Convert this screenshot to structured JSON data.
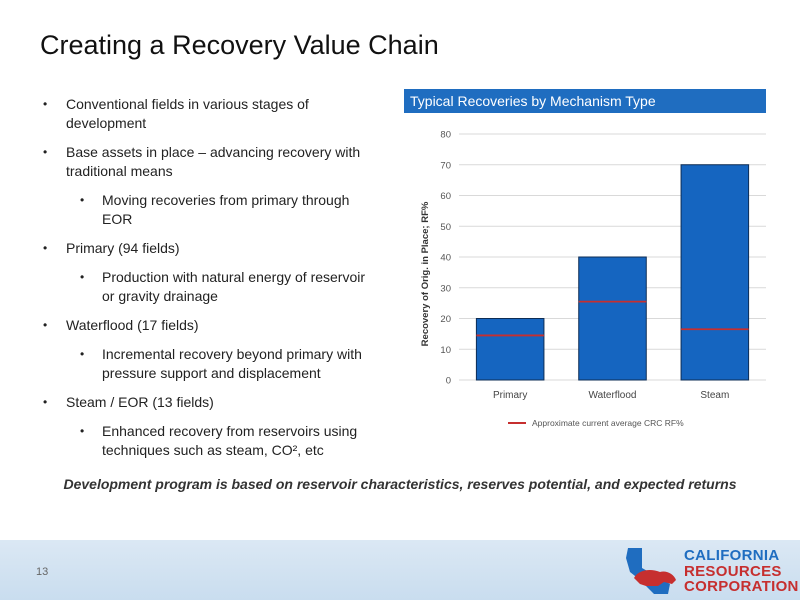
{
  "title": "Creating a Recovery Value Chain",
  "bullets": [
    {
      "level": 1,
      "text": "Conventional fields in various stages of development"
    },
    {
      "level": 1,
      "text": "Base assets in place – advancing recovery with traditional means"
    },
    {
      "level": 2,
      "text": "Moving recoveries from primary through EOR"
    },
    {
      "level": 1,
      "text": "Primary (94 fields)"
    },
    {
      "level": 2,
      "text": "Production with natural energy of reservoir or gravity drainage"
    },
    {
      "level": 1,
      "text": "Waterflood (17 fields)"
    },
    {
      "level": 2,
      "text": "Incremental recovery beyond primary with pressure support and displacement"
    },
    {
      "level": 1,
      "text": "Steam / EOR (13 fields)"
    },
    {
      "level": 2,
      "text": "Enhanced recovery from reservoirs using techniques such as steam, CO², etc"
    }
  ],
  "bullet_glyph": "•",
  "chart_data": {
    "type": "bar",
    "title": "Typical Recoveries by Mechanism Type",
    "ylabel": "Recovery of Orig. in Place; RF%",
    "xlabel": "",
    "ylim": [
      0,
      80
    ],
    "yticks": [
      0,
      10,
      20,
      30,
      40,
      50,
      60,
      70,
      80
    ],
    "categories": [
      "Primary",
      "Waterflood",
      "Steam"
    ],
    "values": [
      20,
      40,
      70
    ],
    "current_avg": [
      14.5,
      25.5,
      16.5
    ],
    "current_avg_label": "Approximate current average CRC RF%",
    "bar_color": "#1565c0",
    "line_color": "#c62f2f",
    "grid": true
  },
  "tagline": "Development program is based on reservoir characteristics, reserves potential, and expected returns",
  "page_number": "13",
  "logo": {
    "line1": "CALIFORNIA",
    "line2": "RESOURCES",
    "line3": "CORPORATION"
  }
}
